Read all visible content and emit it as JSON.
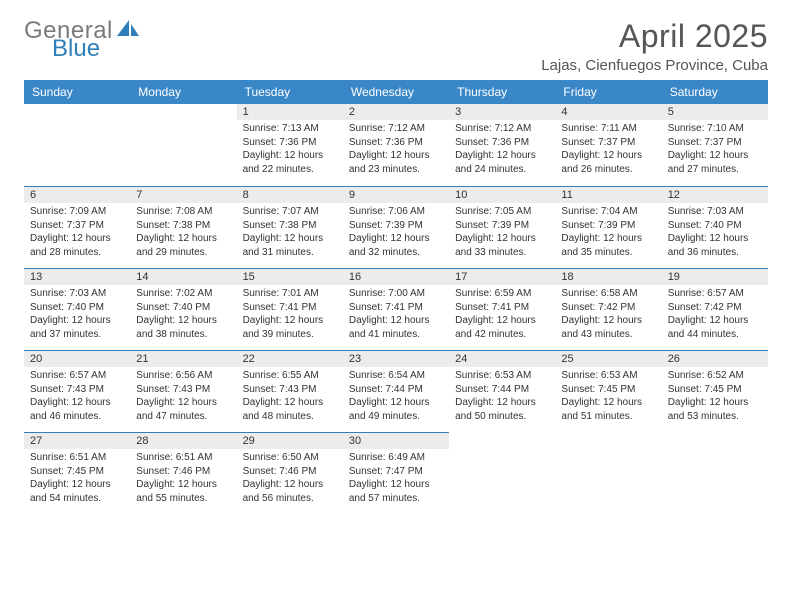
{
  "brand": {
    "part1": "General",
    "part2": "Blue"
  },
  "title": "April 2025",
  "location": "Lajas, Cienfuegos Province, Cuba",
  "colors": {
    "header_bg": "#3a87c8",
    "header_text": "#ffffff",
    "daynum_bg": "#ececec",
    "cell_border_top": "#2f7fba",
    "logo_gray": "#7a7a7a",
    "logo_blue": "#2f7fba",
    "title_color": "#555555",
    "body_text": "#333333",
    "page_bg": "#ffffff"
  },
  "dayHeaders": [
    "Sunday",
    "Monday",
    "Tuesday",
    "Wednesday",
    "Thursday",
    "Friday",
    "Saturday"
  ],
  "startOffset": 2,
  "days": [
    {
      "n": 1,
      "sunrise": "7:13 AM",
      "sunset": "7:36 PM",
      "daylight": "12 hours and 22 minutes."
    },
    {
      "n": 2,
      "sunrise": "7:12 AM",
      "sunset": "7:36 PM",
      "daylight": "12 hours and 23 minutes."
    },
    {
      "n": 3,
      "sunrise": "7:12 AM",
      "sunset": "7:36 PM",
      "daylight": "12 hours and 24 minutes."
    },
    {
      "n": 4,
      "sunrise": "7:11 AM",
      "sunset": "7:37 PM",
      "daylight": "12 hours and 26 minutes."
    },
    {
      "n": 5,
      "sunrise": "7:10 AM",
      "sunset": "7:37 PM",
      "daylight": "12 hours and 27 minutes."
    },
    {
      "n": 6,
      "sunrise": "7:09 AM",
      "sunset": "7:37 PM",
      "daylight": "12 hours and 28 minutes."
    },
    {
      "n": 7,
      "sunrise": "7:08 AM",
      "sunset": "7:38 PM",
      "daylight": "12 hours and 29 minutes."
    },
    {
      "n": 8,
      "sunrise": "7:07 AM",
      "sunset": "7:38 PM",
      "daylight": "12 hours and 31 minutes."
    },
    {
      "n": 9,
      "sunrise": "7:06 AM",
      "sunset": "7:39 PM",
      "daylight": "12 hours and 32 minutes."
    },
    {
      "n": 10,
      "sunrise": "7:05 AM",
      "sunset": "7:39 PM",
      "daylight": "12 hours and 33 minutes."
    },
    {
      "n": 11,
      "sunrise": "7:04 AM",
      "sunset": "7:39 PM",
      "daylight": "12 hours and 35 minutes."
    },
    {
      "n": 12,
      "sunrise": "7:03 AM",
      "sunset": "7:40 PM",
      "daylight": "12 hours and 36 minutes."
    },
    {
      "n": 13,
      "sunrise": "7:03 AM",
      "sunset": "7:40 PM",
      "daylight": "12 hours and 37 minutes."
    },
    {
      "n": 14,
      "sunrise": "7:02 AM",
      "sunset": "7:40 PM",
      "daylight": "12 hours and 38 minutes."
    },
    {
      "n": 15,
      "sunrise": "7:01 AM",
      "sunset": "7:41 PM",
      "daylight": "12 hours and 39 minutes."
    },
    {
      "n": 16,
      "sunrise": "7:00 AM",
      "sunset": "7:41 PM",
      "daylight": "12 hours and 41 minutes."
    },
    {
      "n": 17,
      "sunrise": "6:59 AM",
      "sunset": "7:41 PM",
      "daylight": "12 hours and 42 minutes."
    },
    {
      "n": 18,
      "sunrise": "6:58 AM",
      "sunset": "7:42 PM",
      "daylight": "12 hours and 43 minutes."
    },
    {
      "n": 19,
      "sunrise": "6:57 AM",
      "sunset": "7:42 PM",
      "daylight": "12 hours and 44 minutes."
    },
    {
      "n": 20,
      "sunrise": "6:57 AM",
      "sunset": "7:43 PM",
      "daylight": "12 hours and 46 minutes."
    },
    {
      "n": 21,
      "sunrise": "6:56 AM",
      "sunset": "7:43 PM",
      "daylight": "12 hours and 47 minutes."
    },
    {
      "n": 22,
      "sunrise": "6:55 AM",
      "sunset": "7:43 PM",
      "daylight": "12 hours and 48 minutes."
    },
    {
      "n": 23,
      "sunrise": "6:54 AM",
      "sunset": "7:44 PM",
      "daylight": "12 hours and 49 minutes."
    },
    {
      "n": 24,
      "sunrise": "6:53 AM",
      "sunset": "7:44 PM",
      "daylight": "12 hours and 50 minutes."
    },
    {
      "n": 25,
      "sunrise": "6:53 AM",
      "sunset": "7:45 PM",
      "daylight": "12 hours and 51 minutes."
    },
    {
      "n": 26,
      "sunrise": "6:52 AM",
      "sunset": "7:45 PM",
      "daylight": "12 hours and 53 minutes."
    },
    {
      "n": 27,
      "sunrise": "6:51 AM",
      "sunset": "7:45 PM",
      "daylight": "12 hours and 54 minutes."
    },
    {
      "n": 28,
      "sunrise": "6:51 AM",
      "sunset": "7:46 PM",
      "daylight": "12 hours and 55 minutes."
    },
    {
      "n": 29,
      "sunrise": "6:50 AM",
      "sunset": "7:46 PM",
      "daylight": "12 hours and 56 minutes."
    },
    {
      "n": 30,
      "sunrise": "6:49 AM",
      "sunset": "7:47 PM",
      "daylight": "12 hours and 57 minutes."
    }
  ],
  "labels": {
    "sunrise": "Sunrise:",
    "sunset": "Sunset:",
    "daylight": "Daylight:"
  }
}
